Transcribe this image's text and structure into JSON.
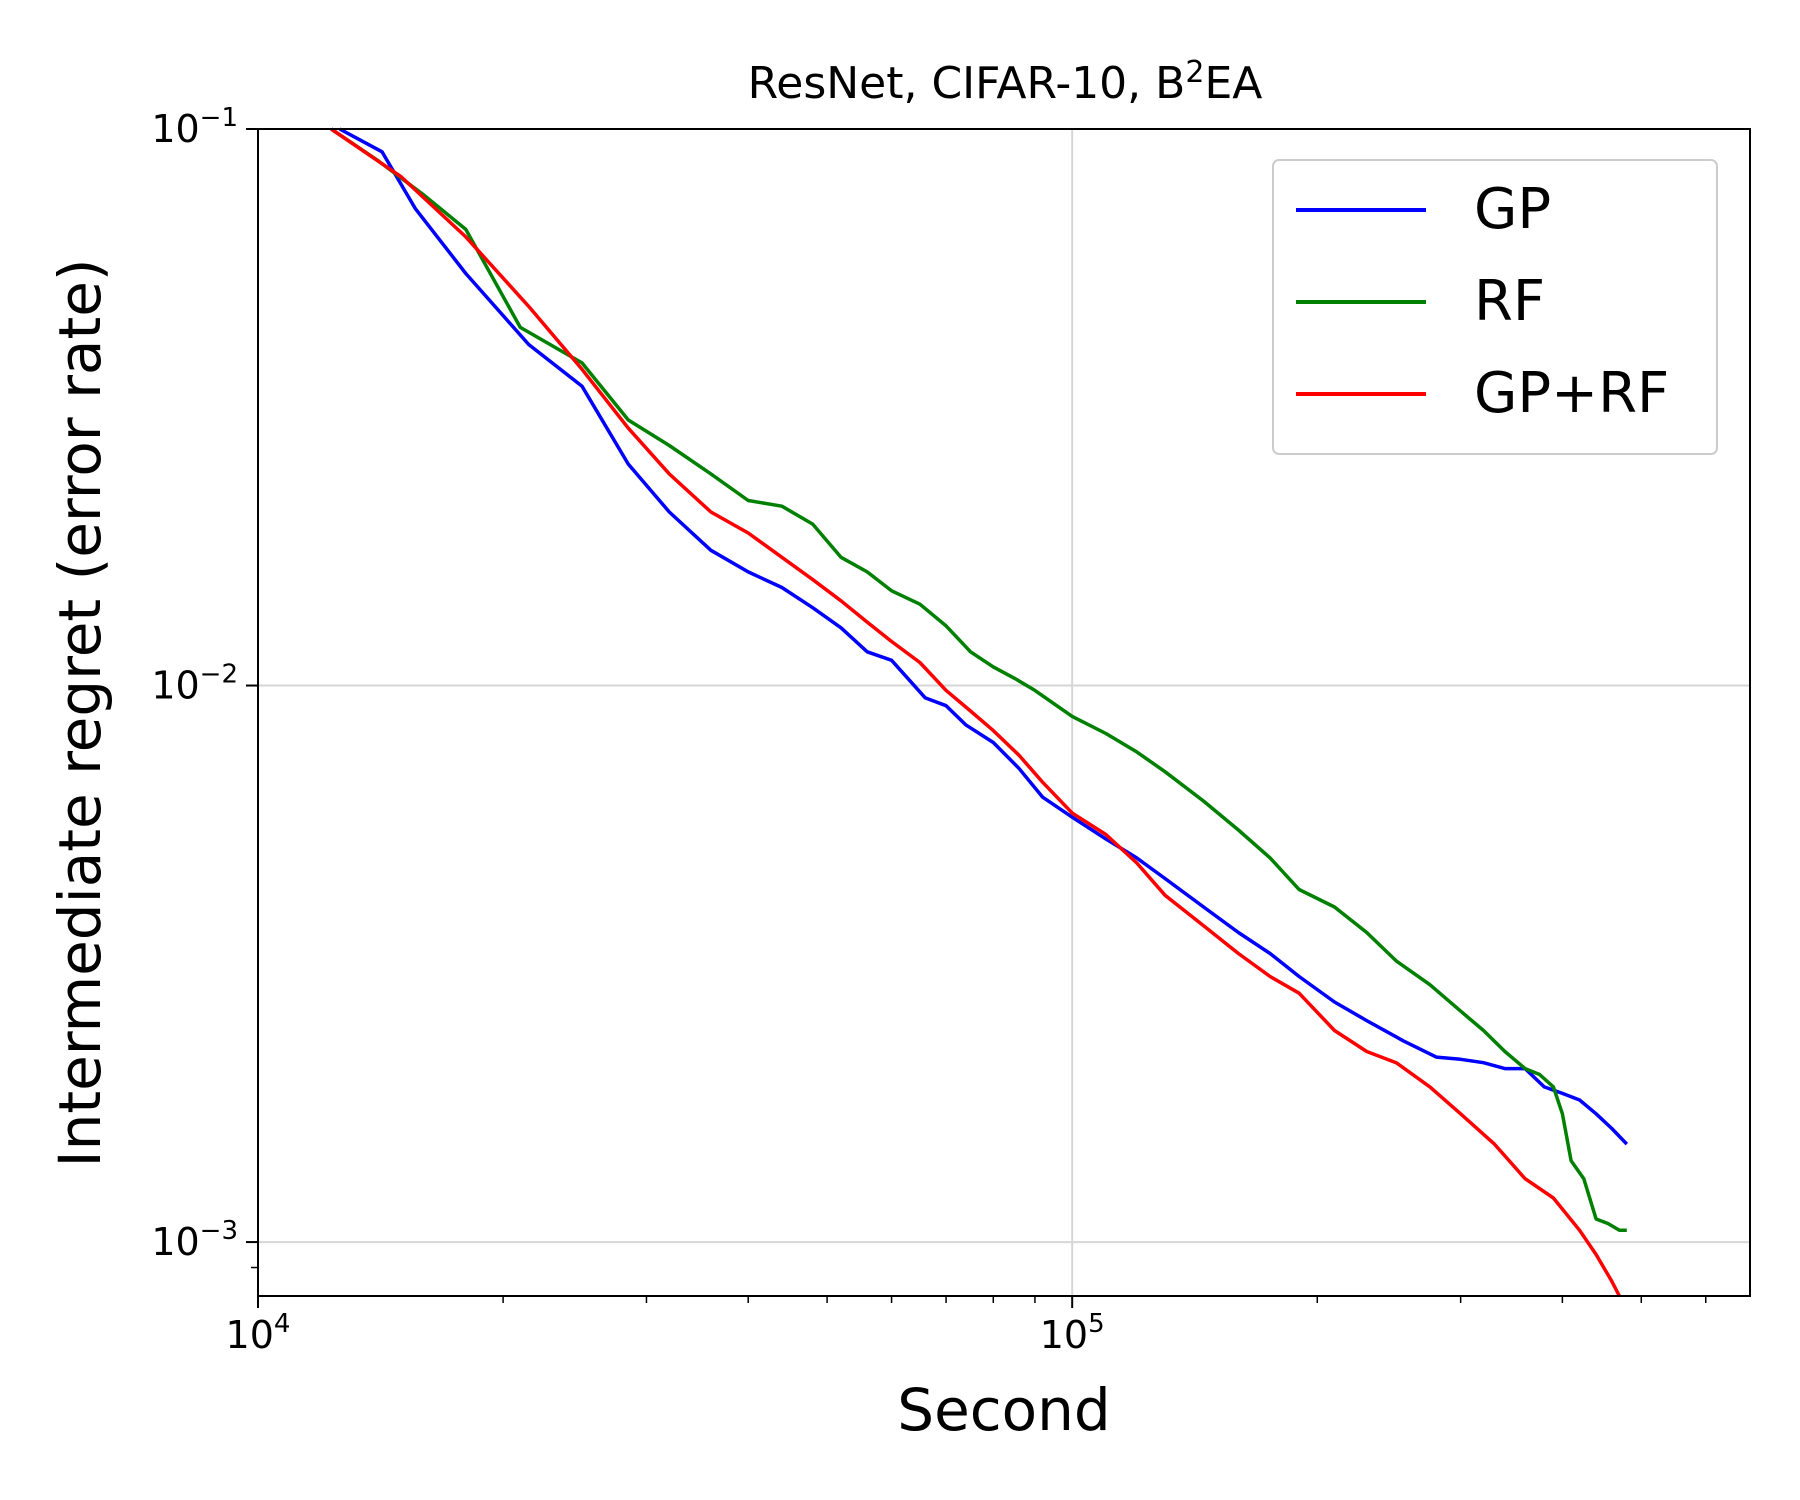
{
  "chart_data": {
    "type": "line",
    "title": "ResNet, CIFAR-10, B",
    "title_superscript": "2",
    "title_suffix": "EA",
    "xlabel": "Second",
    "ylabel": "Intermediate regret (error rate)",
    "xscale": "log",
    "yscale": "log",
    "xlim": [
      10000,
      680000
    ],
    "ylim": [
      0.0008,
      0.1
    ],
    "x_ticks": [
      {
        "value": 10000,
        "base": "10",
        "exp": "4"
      },
      {
        "value": 100000,
        "base": "10",
        "exp": "5"
      }
    ],
    "y_ticks": [
      {
        "value": 0.1,
        "base": "10",
        "exp": "−1"
      },
      {
        "value": 0.01,
        "base": "10",
        "exp": "−2"
      },
      {
        "value": 0.001,
        "base": "10",
        "exp": "−3"
      }
    ],
    "grid": true,
    "legend_position": "top-right",
    "series": [
      {
        "name": "GP",
        "color": "#0000ff",
        "points": [
          [
            12600,
            0.1
          ],
          [
            14200,
            0.091
          ],
          [
            15600,
            0.072
          ],
          [
            18000,
            0.055
          ],
          [
            21500,
            0.041
          ],
          [
            25000,
            0.0345
          ],
          [
            28500,
            0.025
          ],
          [
            32000,
            0.0205
          ],
          [
            36000,
            0.0175
          ],
          [
            40000,
            0.016
          ],
          [
            44000,
            0.015
          ],
          [
            48000,
            0.0138
          ],
          [
            52000,
            0.0127
          ],
          [
            56000,
            0.0115
          ],
          [
            60000,
            0.0111
          ],
          [
            66000,
            0.0095
          ],
          [
            70000,
            0.0092
          ],
          [
            74000,
            0.0085
          ],
          [
            80000,
            0.0079
          ],
          [
            86000,
            0.0071
          ],
          [
            92000,
            0.0063
          ],
          [
            100000,
            0.0058
          ],
          [
            110000,
            0.0053
          ],
          [
            120000,
            0.0049
          ],
          [
            130000,
            0.0045
          ],
          [
            145000,
            0.004
          ],
          [
            160000,
            0.0036
          ],
          [
            175000,
            0.0033
          ],
          [
            190000,
            0.003
          ],
          [
            210000,
            0.0027
          ],
          [
            230000,
            0.0025
          ],
          [
            255000,
            0.0023
          ],
          [
            280000,
            0.00215
          ],
          [
            300000,
            0.00213
          ],
          [
            320000,
            0.0021
          ],
          [
            340000,
            0.00205
          ],
          [
            360000,
            0.00205
          ],
          [
            380000,
            0.0019
          ],
          [
            400000,
            0.00185
          ],
          [
            420000,
            0.0018
          ],
          [
            440000,
            0.0017
          ],
          [
            460000,
            0.0016
          ],
          [
            480000,
            0.0015
          ]
        ]
      },
      {
        "name": "RF",
        "color": "#008000",
        "points": [
          [
            12300,
            0.1
          ],
          [
            14000,
            0.088
          ],
          [
            16000,
            0.076
          ],
          [
            18000,
            0.066
          ],
          [
            21000,
            0.044
          ],
          [
            25000,
            0.038
          ],
          [
            28500,
            0.03
          ],
          [
            32000,
            0.027
          ],
          [
            36000,
            0.024
          ],
          [
            40000,
            0.0215
          ],
          [
            44000,
            0.021
          ],
          [
            48000,
            0.0195
          ],
          [
            52000,
            0.017
          ],
          [
            56000,
            0.016
          ],
          [
            60000,
            0.0148
          ],
          [
            65000,
            0.014
          ],
          [
            70000,
            0.0128
          ],
          [
            75000,
            0.0115
          ],
          [
            80000,
            0.0108
          ],
          [
            85000,
            0.0103
          ],
          [
            90000,
            0.0098
          ],
          [
            100000,
            0.0088
          ],
          [
            110000,
            0.0082
          ],
          [
            120000,
            0.0076
          ],
          [
            130000,
            0.007
          ],
          [
            145000,
            0.0062
          ],
          [
            160000,
            0.0055
          ],
          [
            175000,
            0.0049
          ],
          [
            190000,
            0.0043
          ],
          [
            210000,
            0.004
          ],
          [
            230000,
            0.0036
          ],
          [
            250000,
            0.0032
          ],
          [
            275000,
            0.0029
          ],
          [
            300000,
            0.0026
          ],
          [
            320000,
            0.0024
          ],
          [
            340000,
            0.0022
          ],
          [
            360000,
            0.00205
          ],
          [
            375000,
            0.002
          ],
          [
            390000,
            0.0019
          ],
          [
            400000,
            0.0017
          ],
          [
            410000,
            0.0014
          ],
          [
            425000,
            0.0013
          ],
          [
            440000,
            0.0011
          ],
          [
            455000,
            0.00108
          ],
          [
            470000,
            0.00105
          ],
          [
            480000,
            0.00105
          ]
        ]
      },
      {
        "name": "GP+RF",
        "color": "#ff0000",
        "points": [
          [
            12300,
            0.1
          ],
          [
            15000,
            0.082
          ],
          [
            18000,
            0.064
          ],
          [
            21500,
            0.048
          ],
          [
            25000,
            0.037
          ],
          [
            28500,
            0.029
          ],
          [
            32000,
            0.024
          ],
          [
            36000,
            0.0205
          ],
          [
            40000,
            0.0188
          ],
          [
            44000,
            0.017
          ],
          [
            48000,
            0.0155
          ],
          [
            52000,
            0.0142
          ],
          [
            56000,
            0.013
          ],
          [
            60000,
            0.012
          ],
          [
            65000,
            0.011
          ],
          [
            70000,
            0.0098
          ],
          [
            75000,
            0.009
          ],
          [
            80000,
            0.0083
          ],
          [
            86000,
            0.0075
          ],
          [
            92000,
            0.0067
          ],
          [
            100000,
            0.0059
          ],
          [
            110000,
            0.0054
          ],
          [
            120000,
            0.0048
          ],
          [
            130000,
            0.0042
          ],
          [
            145000,
            0.0037
          ],
          [
            160000,
            0.0033
          ],
          [
            175000,
            0.003
          ],
          [
            190000,
            0.0028
          ],
          [
            210000,
            0.0024
          ],
          [
            230000,
            0.0022
          ],
          [
            250000,
            0.0021
          ],
          [
            275000,
            0.0019
          ],
          [
            300000,
            0.0017
          ],
          [
            330000,
            0.0015
          ],
          [
            360000,
            0.0013
          ],
          [
            390000,
            0.0012
          ],
          [
            420000,
            0.00105
          ],
          [
            440000,
            0.00095
          ],
          [
            460000,
            0.00085
          ],
          [
            470000,
            0.0008
          ]
        ]
      }
    ]
  }
}
